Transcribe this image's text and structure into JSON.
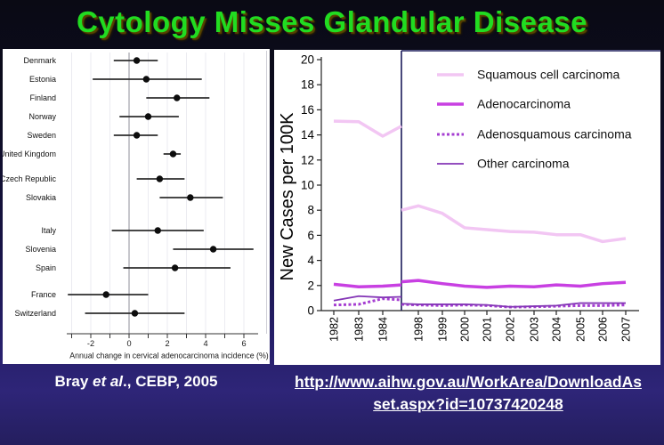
{
  "slide": {
    "title": "Cytology Misses Glandular Disease",
    "citation": {
      "prefix": "Bray ",
      "italic": "et al",
      "suffix": "., CEBP, 2005"
    },
    "link": {
      "line1": "http://www.aihw.gov.au/WorkArea/DownloadAs",
      "line2": "set.aspx?id=10737420248"
    },
    "colors": {
      "title_green": "#21dc21",
      "background_top": "#0a0a14",
      "background_bottom": "#2e2578",
      "panel_white": "#ffffff",
      "text_white": "#ffffff"
    }
  },
  "chart_data": [
    {
      "id": "forest",
      "type": "scatter",
      "variant": "forest-plot",
      "title": "",
      "xlabel": "Annual change in cervical adenocarcinoma incidence (%)",
      "xlim": [
        -3.3,
        6.7
      ],
      "xticks_labeled": [
        -2,
        0,
        2,
        4,
        6
      ],
      "xticks_minor": [
        -3,
        -2,
        -1,
        0,
        1,
        2,
        3,
        4,
        5,
        6
      ],
      "grid": true,
      "zero_line": 0,
      "rows": [
        {
          "label": "Denmark",
          "est": 0.4,
          "lo": -0.8,
          "hi": 1.5,
          "group": 0
        },
        {
          "label": "Estonia",
          "est": 0.9,
          "lo": -1.9,
          "hi": 3.8,
          "group": 0
        },
        {
          "label": "Finland",
          "est": 2.5,
          "lo": 0.9,
          "hi": 4.2,
          "group": 0
        },
        {
          "label": "Norway",
          "est": 1.0,
          "lo": -0.5,
          "hi": 2.6,
          "group": 0
        },
        {
          "label": "Sweden",
          "est": 0.4,
          "lo": -0.8,
          "hi": 1.5,
          "group": 0
        },
        {
          "label": "United Kingdom",
          "est": 2.3,
          "lo": 1.8,
          "hi": 2.7,
          "group": 0
        },
        {
          "label": "Czech Republic",
          "est": 1.6,
          "lo": 0.4,
          "hi": 2.9,
          "group": 1
        },
        {
          "label": "Slovakia",
          "est": 3.2,
          "lo": 1.6,
          "hi": 4.9,
          "group": 1
        },
        {
          "label": "Italy",
          "est": 1.5,
          "lo": -0.9,
          "hi": 3.9,
          "group": 2
        },
        {
          "label": "Slovenia",
          "est": 4.4,
          "lo": 2.3,
          "hi": 6.5,
          "group": 2
        },
        {
          "label": "Spain",
          "est": 2.4,
          "lo": -0.3,
          "hi": 5.3,
          "group": 2
        },
        {
          "label": "France",
          "est": -1.2,
          "lo": -3.2,
          "hi": 1.0,
          "group": 3
        },
        {
          "label": "Switzerland",
          "est": 0.3,
          "lo": -2.3,
          "hi": 2.9,
          "group": 3
        }
      ]
    },
    {
      "id": "trends",
      "type": "line",
      "title": "",
      "ylabel": "New Cases per 100K",
      "ylim": [
        0,
        20
      ],
      "ytick_step": 2,
      "x_break_between": [
        "1984",
        "1998"
      ],
      "x_left_labels": [
        "1982",
        "1983",
        "1984"
      ],
      "x_right_labels": [
        "1998",
        "1999",
        "2000",
        "2001",
        "2002",
        "2003",
        "2004",
        "2005",
        "2006",
        "2007"
      ],
      "legend_position": "top-right",
      "series": [
        {
          "name": "Squamous cell carcinoma",
          "color": "#f2c6f3",
          "dash": "solid",
          "width": 3.5,
          "left_segment": [
            15.1,
            15.05,
            13.9,
            14.7
          ],
          "right_segment": [
            8.0,
            8.35,
            7.75,
            6.6,
            6.45,
            6.3,
            6.25,
            6.05,
            6.05,
            5.5,
            5.75
          ]
        },
        {
          "name": "Adenocarcinoma",
          "color": "#c840e2",
          "dash": "solid",
          "width": 3.5,
          "left_segment": [
            2.1,
            1.9,
            1.95,
            2.05
          ],
          "right_segment": [
            2.3,
            2.4,
            2.15,
            1.95,
            1.85,
            1.95,
            1.9,
            2.05,
            1.95,
            2.15,
            2.25
          ]
        },
        {
          "name": "Adenosquamous carcinoma",
          "color": "#a63fd2",
          "dash": "dotted",
          "width": 3,
          "left_segment": [
            0.45,
            0.5,
            0.95,
            0.85
          ],
          "right_segment": [
            0.5,
            0.45,
            0.4,
            0.45,
            0.4,
            0.28,
            0.3,
            0.35,
            0.4,
            0.4,
            0.45
          ]
        },
        {
          "name": "Other carcinoma",
          "color": "#8436b6",
          "dash": "solid",
          "width": 1.8,
          "left_segment": [
            0.8,
            1.15,
            1.05,
            1.1
          ],
          "right_segment": [
            0.55,
            0.5,
            0.5,
            0.5,
            0.45,
            0.3,
            0.35,
            0.4,
            0.6,
            0.6,
            0.6
          ]
        }
      ]
    }
  ]
}
